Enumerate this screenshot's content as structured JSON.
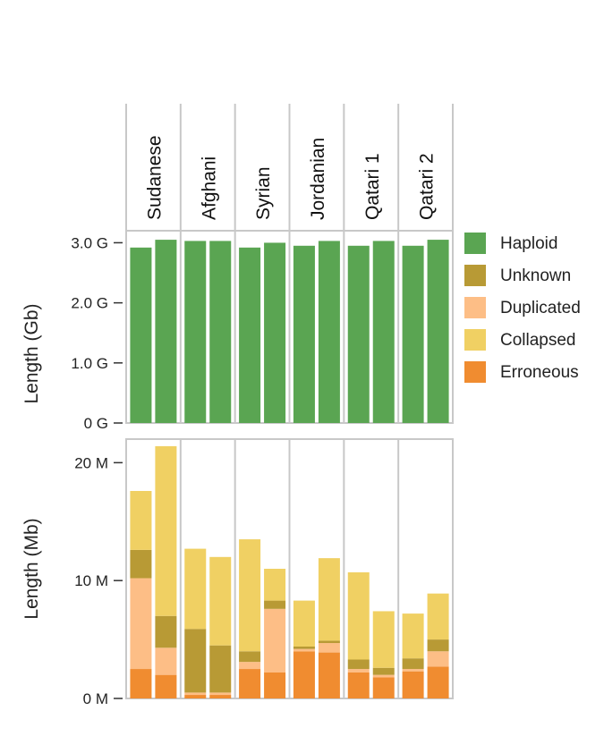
{
  "chart_data": {
    "type": "stacked-bar",
    "groups": [
      "Sudanese",
      "Afghani",
      "Syrian",
      "Jordanian",
      "Qatari 1",
      "Qatari 2"
    ],
    "bars_per_group": 2,
    "legend": [
      {
        "name": "Haploid",
        "color": "#5aa552"
      },
      {
        "name": "Unknown",
        "color": "#b89a35"
      },
      {
        "name": "Duplicated",
        "color": "#fdbe86"
      },
      {
        "name": "Collapsed",
        "color": "#f0d063"
      },
      {
        "name": "Erroneous",
        "color": "#f08c30"
      }
    ],
    "stack_order": [
      "Erroneous",
      "Duplicated",
      "Unknown",
      "Collapsed"
    ],
    "panels": [
      {
        "id": "top",
        "ylabel": "Length (Gb)",
        "unit": "Gb",
        "ylim": [
          0,
          3.2
        ],
        "yticks": [
          0,
          1,
          2,
          3
        ],
        "ytick_labels": [
          "0 G",
          "1.0 G",
          "2.0 G",
          "3.0 G"
        ],
        "haploid": [
          2.92,
          3.05,
          3.03,
          3.03,
          2.92,
          3.0,
          2.95,
          3.03,
          2.95,
          3.03,
          2.95,
          3.05
        ]
      },
      {
        "id": "bottom",
        "ylabel": "Length (Mb)",
        "unit": "Mb",
        "ylim": [
          0,
          22
        ],
        "yticks": [
          0,
          10,
          20
        ],
        "ytick_labels": [
          "0 M",
          "10 M",
          "20 M"
        ],
        "stacks": {
          "Erroneous": [
            2.5,
            2.0,
            0.3,
            0.3,
            2.5,
            2.2,
            4.0,
            3.9,
            2.2,
            1.8,
            2.3,
            2.7
          ],
          "Duplicated": [
            7.7,
            2.3,
            0.2,
            0.2,
            0.6,
            5.4,
            0.2,
            0.8,
            0.3,
            0.2,
            0.2,
            1.3
          ],
          "Unknown": [
            2.4,
            2.7,
            5.4,
            4.0,
            0.9,
            0.7,
            0.2,
            0.2,
            0.8,
            0.6,
            0.9,
            1.0
          ],
          "Collapsed": [
            5.0,
            14.4,
            6.8,
            7.5,
            9.5,
            2.7,
            3.9,
            7.0,
            7.4,
            4.8,
            3.8,
            3.9
          ]
        }
      }
    ]
  }
}
